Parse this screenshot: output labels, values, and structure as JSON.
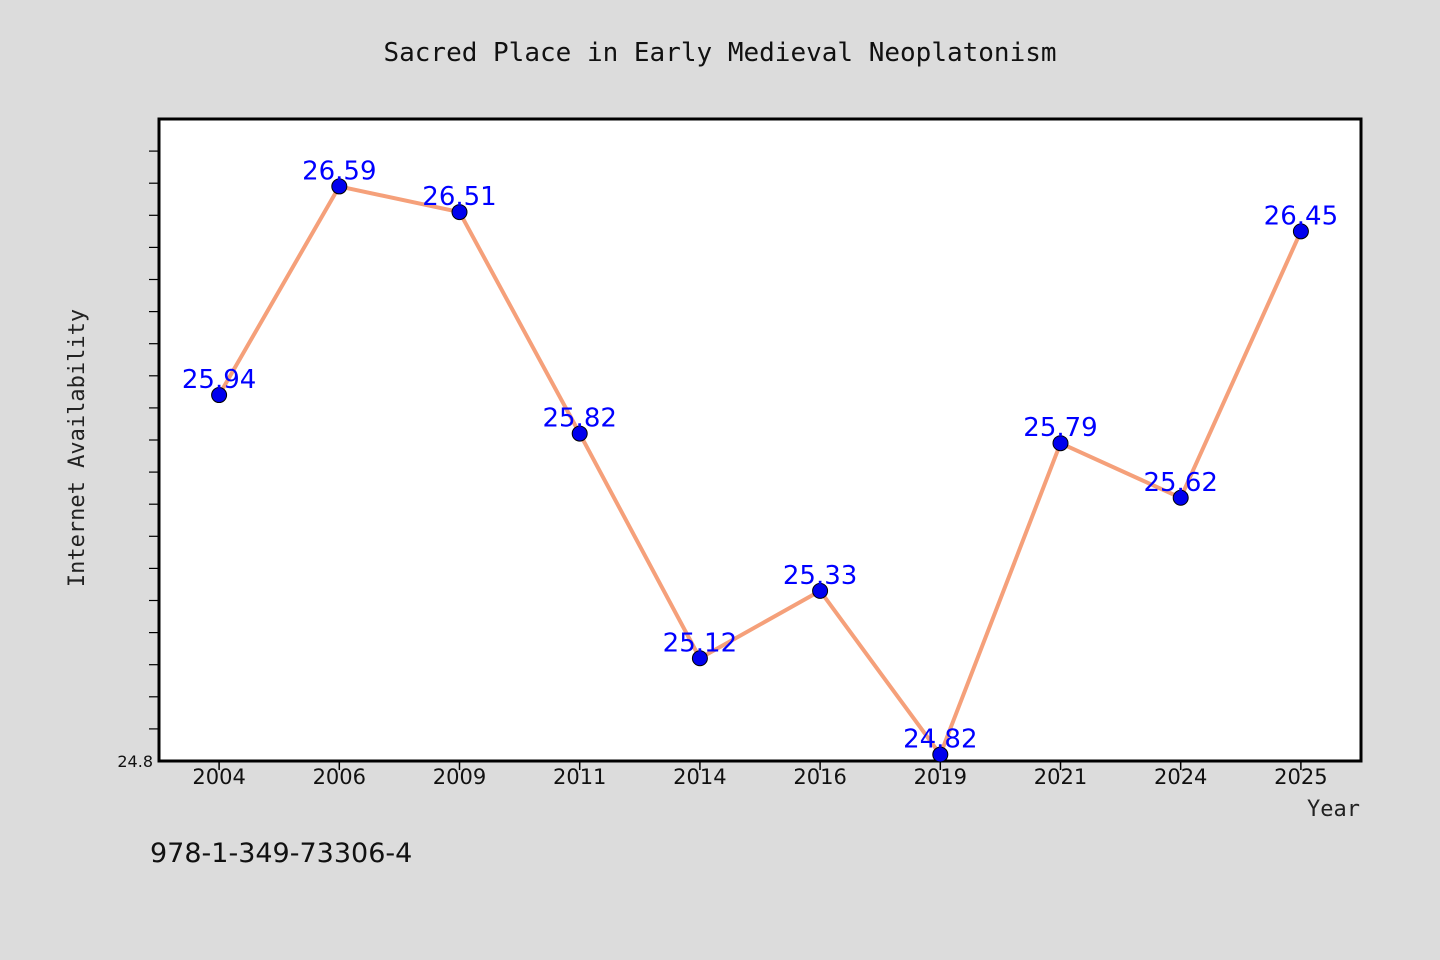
{
  "chart_data": {
    "type": "line",
    "title": "Sacred Place in Early Medieval Neoplatonism",
    "xlabel": "Year",
    "ylabel": "Internet Availability",
    "categories": [
      "2004",
      "2006",
      "2009",
      "2011",
      "2014",
      "2016",
      "2019",
      "2021",
      "2024",
      "2025"
    ],
    "series": [
      {
        "values": [
          25.94,
          26.59,
          26.51,
          25.82,
          25.12,
          25.33,
          24.82,
          25.79,
          25.62,
          26.45
        ],
        "data_labels": [
          "25.94",
          "26.59",
          "26.51",
          "25.82",
          "25.12",
          "25.33",
          "24.82",
          "25.79",
          "25.62",
          "26.45"
        ],
        "line_color": "#f5a07a",
        "marker_color": "#0000ee"
      }
    ],
    "ylim": [
      24.8,
      26.8
    ],
    "yticks_minor_step": 0.1,
    "ytick_labels": [
      "24.8"
    ],
    "grid": false,
    "plot_background": "#ffffff",
    "page_background": "#dcdcdc"
  },
  "footer": {
    "isbn": "978-1-349-73306-4"
  }
}
